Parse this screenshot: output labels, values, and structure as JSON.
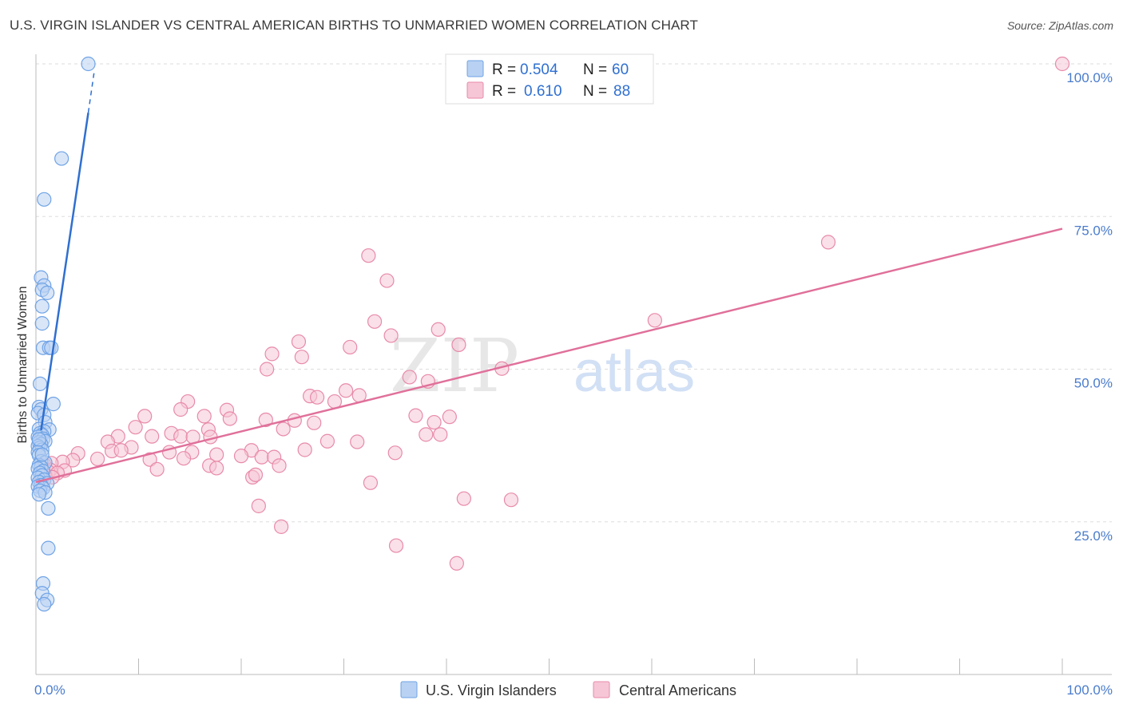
{
  "title": "U.S. VIRGIN ISLANDER VS CENTRAL AMERICAN BIRTHS TO UNMARRIED WOMEN CORRELATION CHART",
  "source": "Source: ZipAtlas.com",
  "watermark": {
    "zip": "ZIP",
    "atlas": "atlas"
  },
  "colors": {
    "blue": "#6fa3e6",
    "blue_fill": "#b9d2f3",
    "blue_line": "#2f6fd0",
    "pink": "#e88aa9",
    "pink_fill": "#f6c6d6",
    "pink_line": "#e0709a",
    "tick_label": "#4a7ccc",
    "grid": "#dddddd"
  },
  "legend": {
    "r_label": "R =",
    "n_label": "N =",
    "series": [
      {
        "name": "U.S. Virgin Islanders",
        "r": "0.504",
        "n": "60"
      },
      {
        "name": "Central Americans",
        "r": "0.610",
        "n": "88"
      }
    ]
  },
  "chart_data": {
    "type": "scatter",
    "title": "U.S. VIRGIN ISLANDER VS CENTRAL AMERICAN BIRTHS TO UNMARRIED WOMEN CORRELATION CHART",
    "xlabel": "",
    "ylabel": "Births to Unmarried Women",
    "xlim": [
      0,
      100
    ],
    "ylim": [
      0,
      100
    ],
    "x_tick_labels": [
      "0.0%",
      "100.0%"
    ],
    "y_ticks": [
      25,
      50,
      75,
      100
    ],
    "y_tick_labels": [
      "25.0%",
      "50.0%",
      "75.0%",
      "100.0%"
    ],
    "grid": true,
    "series": [
      {
        "name": "U.S. Virgin Islanders",
        "trend": {
          "x0": 0.5,
          "y0": 40.0,
          "x1": 5.1,
          "y1": 92.0,
          "dash_to_x": 5.7,
          "dash_to_y": 99.0
        },
        "points": [
          [
            5.1,
            100.0
          ],
          [
            2.5,
            84.5
          ],
          [
            0.8,
            77.8
          ],
          [
            0.5,
            65.0
          ],
          [
            0.8,
            63.7
          ],
          [
            0.6,
            63.0
          ],
          [
            1.1,
            62.5
          ],
          [
            0.6,
            60.3
          ],
          [
            0.6,
            57.5
          ],
          [
            0.7,
            53.5
          ],
          [
            1.3,
            53.5
          ],
          [
            1.5,
            53.5
          ],
          [
            0.4,
            47.6
          ],
          [
            1.7,
            44.3
          ],
          [
            0.3,
            43.8
          ],
          [
            0.5,
            43.4
          ],
          [
            0.2,
            42.8
          ],
          [
            0.8,
            42.5
          ],
          [
            0.9,
            41.3
          ],
          [
            0.3,
            40.2
          ],
          [
            1.3,
            40.1
          ],
          [
            0.8,
            39.8
          ],
          [
            0.4,
            39.5
          ],
          [
            0.6,
            39.2
          ],
          [
            0.2,
            38.9
          ],
          [
            0.7,
            38.6
          ],
          [
            0.9,
            38.2
          ],
          [
            0.3,
            38.0
          ],
          [
            0.5,
            37.7
          ],
          [
            0.2,
            37.4
          ],
          [
            0.4,
            37.1
          ],
          [
            0.6,
            36.8
          ],
          [
            0.2,
            36.4
          ],
          [
            0.3,
            35.9
          ],
          [
            0.5,
            34.9
          ],
          [
            0.9,
            34.7
          ],
          [
            0.3,
            34.3
          ],
          [
            0.5,
            34.0
          ],
          [
            0.2,
            33.7
          ],
          [
            0.7,
            33.3
          ],
          [
            0.4,
            33.0
          ],
          [
            0.6,
            32.6
          ],
          [
            0.2,
            32.2
          ],
          [
            0.8,
            31.9
          ],
          [
            0.3,
            31.5
          ],
          [
            1.1,
            31.3
          ],
          [
            0.5,
            31.0
          ],
          [
            0.2,
            30.8
          ],
          [
            0.7,
            30.5
          ],
          [
            0.4,
            30.1
          ],
          [
            0.9,
            29.8
          ],
          [
            0.3,
            29.5
          ],
          [
            1.2,
            27.2
          ],
          [
            1.2,
            20.7
          ],
          [
            0.7,
            14.9
          ],
          [
            0.6,
            13.3
          ],
          [
            1.1,
            12.2
          ],
          [
            0.8,
            11.5
          ],
          [
            0.3,
            38.5
          ],
          [
            0.6,
            36.0
          ]
        ]
      },
      {
        "name": "Central Americans",
        "trend": {
          "x0": 0.0,
          "y0": 31.5,
          "x1": 100.0,
          "y1": 73.0
        },
        "points": [
          [
            100.0,
            100.0
          ],
          [
            77.2,
            70.8
          ],
          [
            32.4,
            68.6
          ],
          [
            34.2,
            64.5
          ],
          [
            60.3,
            58.0
          ],
          [
            33.0,
            57.8
          ],
          [
            39.2,
            56.5
          ],
          [
            34.6,
            55.5
          ],
          [
            25.6,
            54.5
          ],
          [
            41.2,
            54.0
          ],
          [
            30.6,
            53.6
          ],
          [
            23.0,
            52.5
          ],
          [
            25.9,
            52.0
          ],
          [
            22.5,
            50.0
          ],
          [
            45.4,
            50.1
          ],
          [
            36.4,
            48.7
          ],
          [
            38.2,
            48.0
          ],
          [
            30.2,
            46.5
          ],
          [
            26.7,
            45.6
          ],
          [
            27.4,
            45.4
          ],
          [
            31.5,
            45.7
          ],
          [
            29.1,
            44.7
          ],
          [
            14.8,
            44.7
          ],
          [
            14.1,
            43.4
          ],
          [
            18.6,
            43.3
          ],
          [
            10.6,
            42.3
          ],
          [
            16.4,
            42.3
          ],
          [
            18.9,
            41.9
          ],
          [
            22.4,
            41.7
          ],
          [
            25.2,
            41.6
          ],
          [
            37.0,
            42.4
          ],
          [
            40.3,
            42.2
          ],
          [
            38.8,
            41.3
          ],
          [
            27.1,
            41.2
          ],
          [
            9.7,
            40.5
          ],
          [
            16.8,
            40.1
          ],
          [
            24.1,
            40.2
          ],
          [
            13.2,
            39.5
          ],
          [
            14.1,
            39.0
          ],
          [
            15.3,
            38.9
          ],
          [
            17.0,
            38.9
          ],
          [
            8.0,
            39.0
          ],
          [
            11.3,
            39.0
          ],
          [
            38.0,
            39.3
          ],
          [
            39.4,
            39.3
          ],
          [
            7.0,
            38.1
          ],
          [
            31.3,
            38.1
          ],
          [
            28.4,
            38.2
          ],
          [
            9.3,
            37.2
          ],
          [
            7.4,
            36.6
          ],
          [
            8.3,
            36.7
          ],
          [
            13.0,
            36.4
          ],
          [
            21.0,
            36.7
          ],
          [
            15.2,
            36.4
          ],
          [
            26.2,
            36.8
          ],
          [
            17.6,
            36.0
          ],
          [
            20.0,
            35.8
          ],
          [
            35.0,
            36.3
          ],
          [
            11.1,
            35.2
          ],
          [
            14.4,
            35.4
          ],
          [
            4.1,
            36.2
          ],
          [
            6.0,
            35.3
          ],
          [
            3.6,
            35.1
          ],
          [
            22.0,
            35.6
          ],
          [
            23.2,
            35.6
          ],
          [
            2.6,
            34.8
          ],
          [
            1.5,
            34.6
          ],
          [
            0.8,
            34.4
          ],
          [
            16.9,
            34.2
          ],
          [
            23.7,
            34.2
          ],
          [
            17.6,
            33.8
          ],
          [
            11.8,
            33.6
          ],
          [
            1.4,
            33.5
          ],
          [
            2.8,
            33.4
          ],
          [
            1.2,
            33.2
          ],
          [
            2.1,
            33.0
          ],
          [
            0.9,
            32.6
          ],
          [
            1.6,
            32.3
          ],
          [
            0.5,
            31.8
          ],
          [
            21.1,
            32.3
          ],
          [
            32.6,
            31.4
          ],
          [
            41.7,
            28.8
          ],
          [
            46.3,
            28.6
          ],
          [
            21.7,
            27.6
          ],
          [
            23.9,
            24.2
          ],
          [
            35.1,
            21.1
          ],
          [
            41.0,
            18.2
          ],
          [
            21.4,
            32.7
          ]
        ]
      }
    ]
  }
}
